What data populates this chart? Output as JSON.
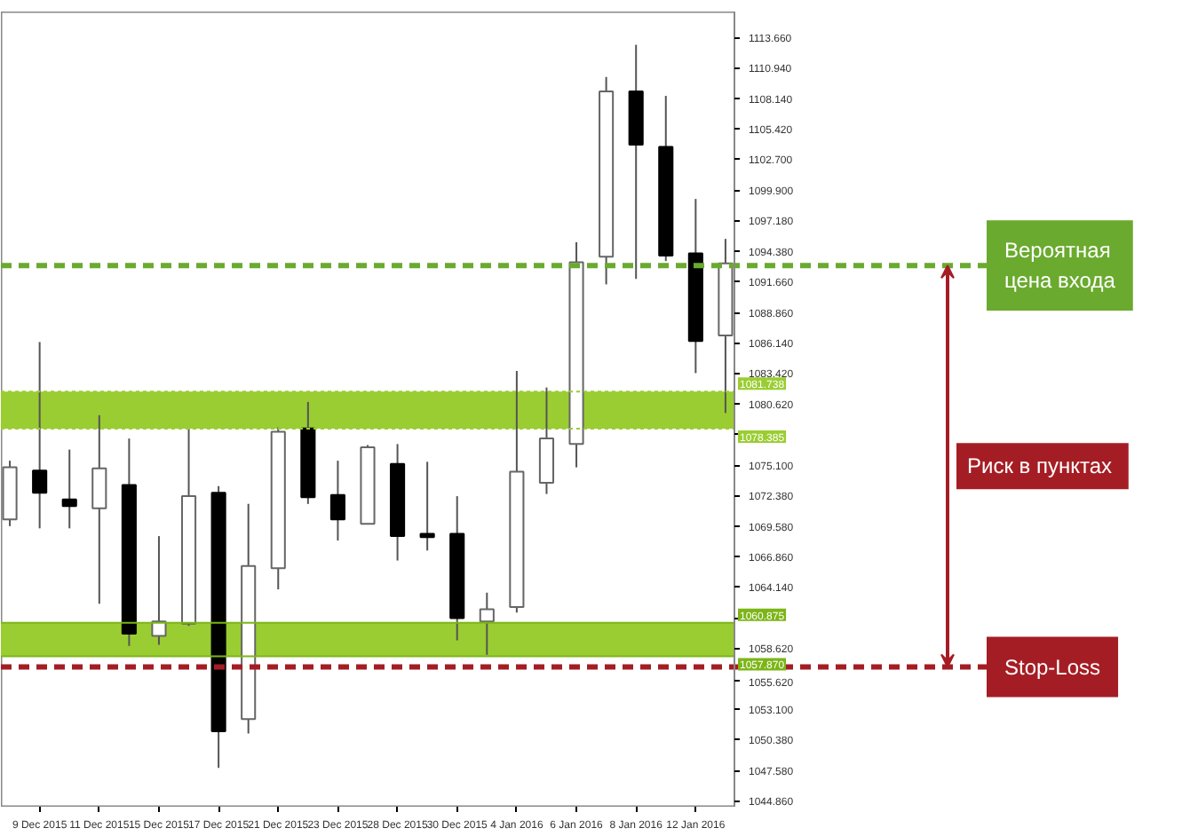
{
  "chart_data": {
    "type": "candlestick",
    "categories": [
      null,
      "9 Dec 2015",
      null,
      "11 Dec 2015",
      null,
      "15 Dec 2015",
      null,
      "17 Dec 2015",
      null,
      "21 Dec 2015",
      null,
      "23 Dec 2015",
      null,
      "28 Dec 2015",
      null,
      "30 Dec 2015",
      null,
      "4 Jan 2016",
      null,
      "6 Jan 2016",
      null,
      "8 Jan 2016",
      null,
      "12 Jan 2016",
      null
    ],
    "ohlc": [
      [
        1070.2,
        1075.5,
        1069.6,
        1074.9
      ],
      [
        1074.6,
        1086.2,
        1069.4,
        1072.6
      ],
      [
        1072.0,
        1076.5,
        1069.4,
        1071.4
      ],
      [
        1071.2,
        1079.6,
        1062.6,
        1074.8
      ],
      [
        1073.3,
        1077.5,
        1058.8,
        1059.9
      ],
      [
        1059.7,
        1068.7,
        1058.9,
        1061.0
      ],
      [
        1060.8,
        1078.4,
        1060.6,
        1072.3
      ],
      [
        1072.6,
        1073.2,
        1047.8,
        1051.1
      ],
      [
        1052.2,
        1071.6,
        1050.9,
        1066.0
      ],
      [
        1065.8,
        1078.5,
        1063.9,
        1078.1
      ],
      [
        1078.4,
        1080.8,
        1071.6,
        1072.2
      ],
      [
        1072.4,
        1075.5,
        1068.3,
        1070.2
      ],
      [
        1069.8,
        1076.9,
        1069.8,
        1076.7
      ],
      [
        1075.2,
        1077.0,
        1066.5,
        1068.7
      ],
      [
        1068.9,
        1075.4,
        1067.4,
        1068.6
      ],
      [
        1068.9,
        1072.3,
        1059.3,
        1061.3
      ],
      [
        1061.0,
        1063.6,
        1058.0,
        1062.1
      ],
      [
        1062.3,
        1083.6,
        1061.8,
        1074.5
      ],
      [
        1073.5,
        1082.1,
        1072.5,
        1077.5
      ],
      [
        1077.0,
        1095.2,
        1074.9,
        1093.4
      ],
      [
        1093.9,
        1110.1,
        1091.4,
        1108.8
      ],
      [
        1108.8,
        1113.0,
        1091.9,
        1104.0
      ],
      [
        1103.8,
        1108.4,
        1093.5,
        1094.0
      ],
      [
        1094.2,
        1099.1,
        1083.4,
        1086.3
      ],
      [
        1086.8,
        1095.5,
        1079.8,
        1093.3
      ]
    ],
    "ylim": [
      1044.3,
      1116.0
    ],
    "yticks": [
      {
        "value": 1113.66,
        "label": "1113.660"
      },
      {
        "value": 1110.94,
        "label": "1110.940"
      },
      {
        "value": 1108.14,
        "label": "1108.140"
      },
      {
        "value": 1105.42,
        "label": "1105.420"
      },
      {
        "value": 1102.7,
        "label": "1102.700"
      },
      {
        "value": 1099.9,
        "label": "1099.900"
      },
      {
        "value": 1097.18,
        "label": "1097.180"
      },
      {
        "value": 1094.38,
        "label": "1094.380"
      },
      {
        "value": 1091.66,
        "label": "1091.660"
      },
      {
        "value": 1088.86,
        "label": "1088.860"
      },
      {
        "value": 1086.14,
        "label": "1086.140"
      },
      {
        "value": 1083.42,
        "label": "1083.420"
      },
      {
        "value": 1080.62,
        "label": "1080.620"
      },
      {
        "value": 1077.9,
        "label": null
      },
      {
        "value": 1075.1,
        "label": "1075.100"
      },
      {
        "value": 1072.38,
        "label": "1072.380"
      },
      {
        "value": 1069.58,
        "label": "1069.580"
      },
      {
        "value": 1066.86,
        "label": "1066.860"
      },
      {
        "value": 1064.14,
        "label": "1064.140"
      },
      {
        "value": 1061.34,
        "label": null
      },
      {
        "value": 1058.62,
        "label": "1058.620"
      },
      {
        "value": 1055.62,
        "label": "1055.620"
      },
      {
        "value": 1053.1,
        "label": "1053.100"
      },
      {
        "value": 1050.38,
        "label": "1050.380"
      },
      {
        "value": 1047.58,
        "label": "1047.580"
      },
      {
        "value": 1044.86,
        "label": "1044.860"
      }
    ],
    "bands": [
      {
        "axis": "y",
        "from": 1078.385,
        "to": 1081.738,
        "color": "#9acd32"
      },
      {
        "axis": "y",
        "from": 1057.87,
        "to": 1060.875,
        "color": "#9acd32"
      }
    ],
    "ref_lines": [
      {
        "axis": "y",
        "value": 1081.738,
        "label": "1081.738",
        "color": "#9acd32",
        "line_style": "dotted"
      },
      {
        "axis": "y",
        "value": 1078.385,
        "label": "1078.385",
        "color": "#9acd32",
        "line_style": "dotted"
      },
      {
        "axis": "y",
        "value": 1060.875,
        "label": "1060.875",
        "color": "#7cb518",
        "line_style": "solid"
      },
      {
        "axis": "y",
        "value": 1057.87,
        "label": "1057.870",
        "color": "#7cb518",
        "line_style": "solid"
      },
      {
        "axis": "y",
        "value": 1093.1,
        "label": "Вероятная цена входа",
        "color": "#6aaa2e",
        "line_style": "dashed"
      },
      {
        "axis": "y",
        "value": 1056.9,
        "label": "Stop-Loss",
        "color": "#a51d24",
        "line_style": "dashed"
      }
    ],
    "annotations": [
      "Риск  в пунктах"
    ],
    "grid": false
  }
}
